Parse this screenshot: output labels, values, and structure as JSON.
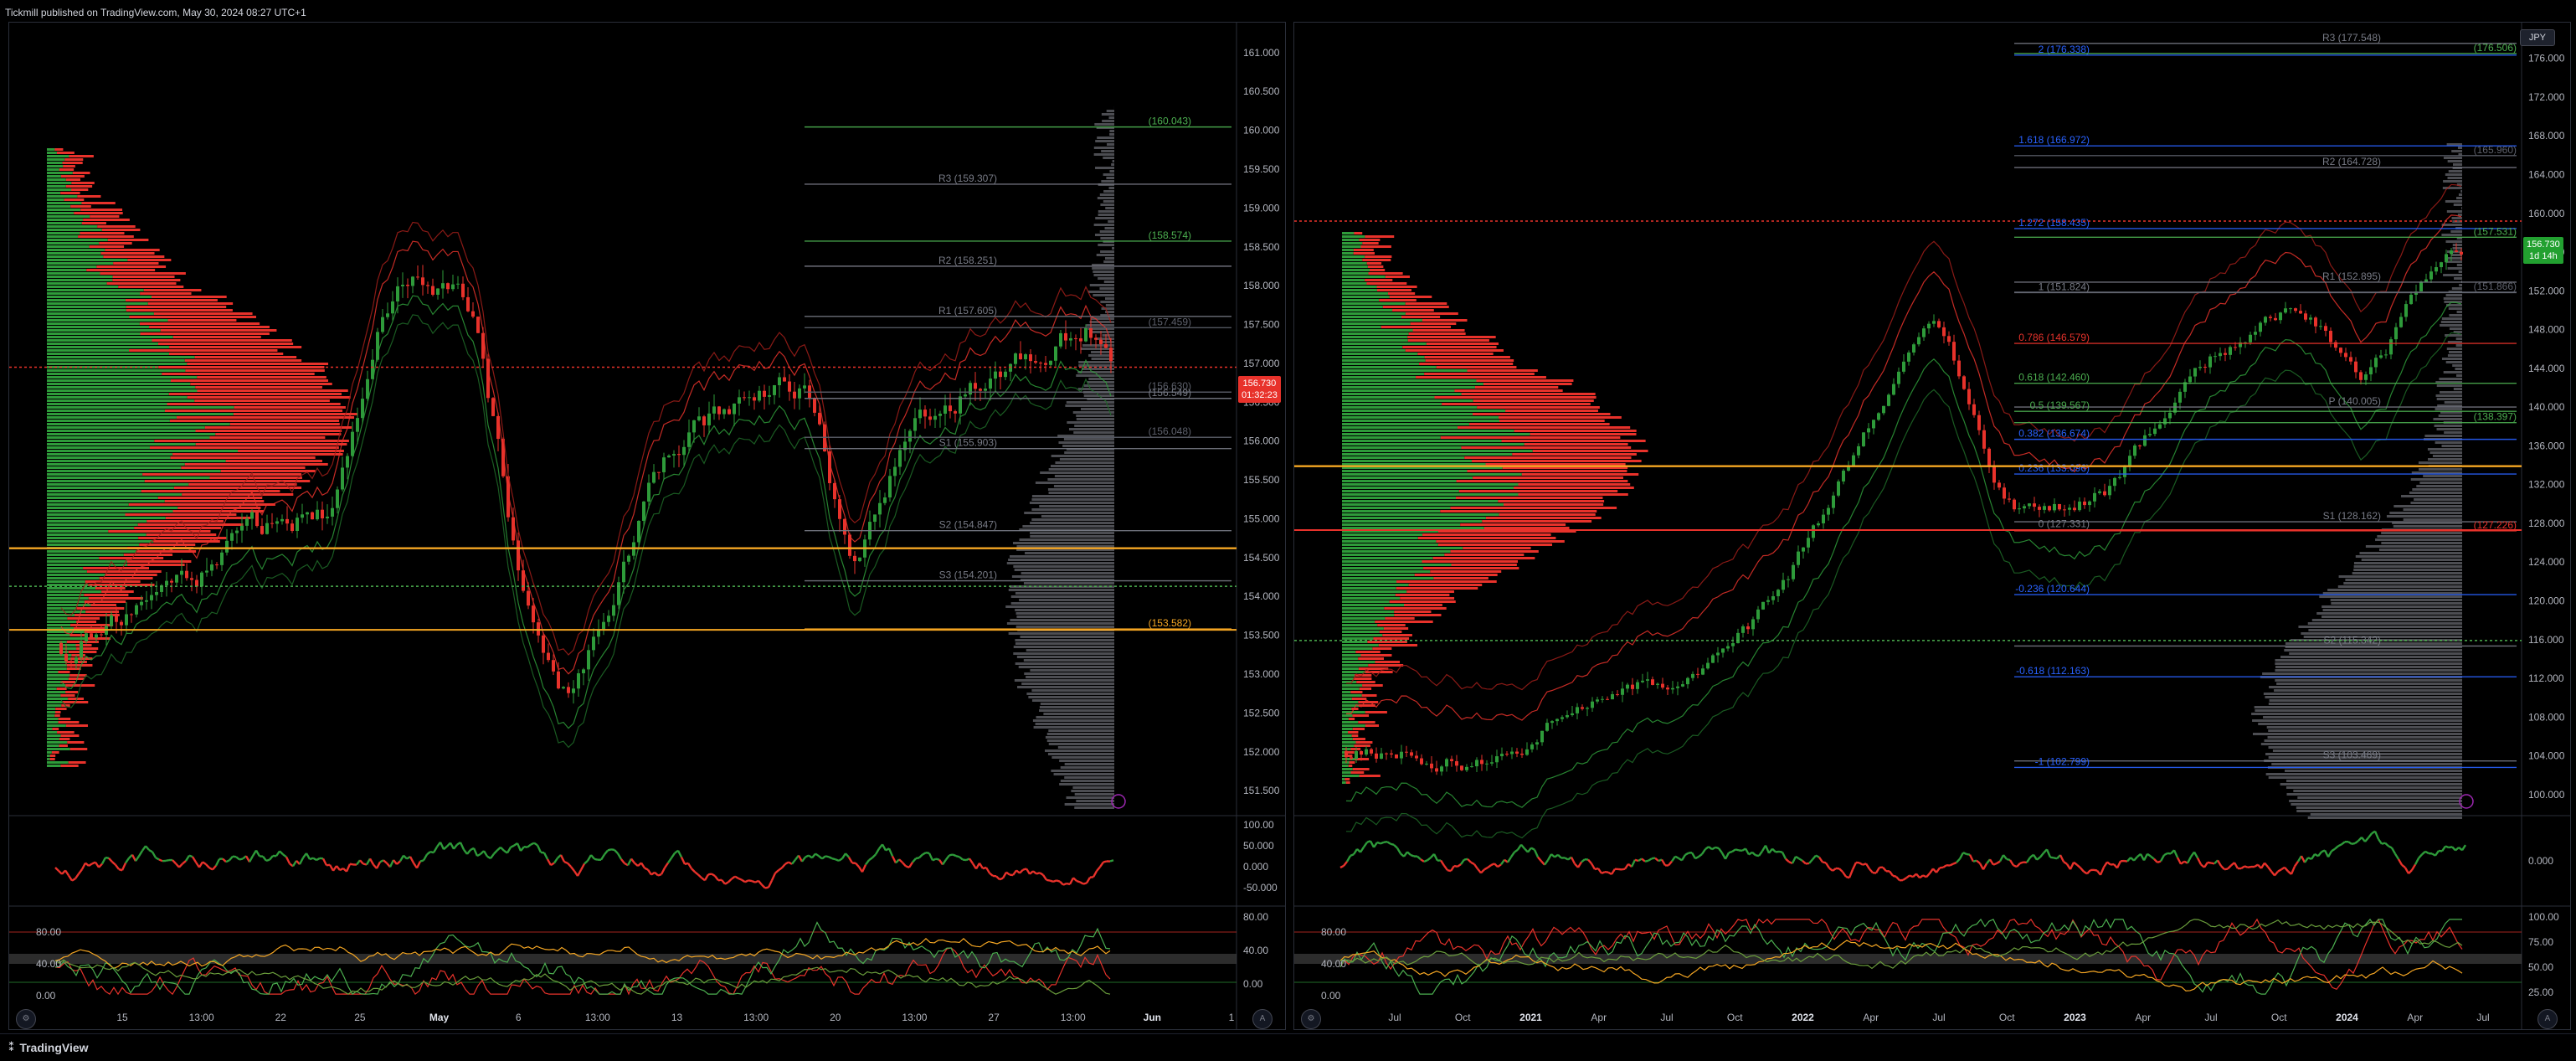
{
  "header": {
    "publish_line": "Tickmill published on TradingView.com, May 30, 2024 08:27 UTC+1"
  },
  "footer": {
    "brand": "TradingView"
  },
  "colors": {
    "bull": "#2e9b3a",
    "bear": "#e8322b",
    "axis_text": "#b2b5be",
    "grid": "#1a1a1a",
    "orange": "#f5a623",
    "blue": "#2962ff",
    "purple": "#9c27b0"
  },
  "left_chart": {
    "price_axis": [
      "161.000",
      "160.500",
      "160.000",
      "159.500",
      "159.000",
      "158.500",
      "158.000",
      "157.500",
      "157.000",
      "156.500",
      "156.000",
      "155.500",
      "155.000",
      "154.500",
      "154.000",
      "153.500",
      "153.000",
      "152.500",
      "152.000",
      "151.500"
    ],
    "price_range": [
      151.2,
      161.3
    ],
    "time_axis": [
      "15",
      "13:00",
      "22",
      "25",
      "May",
      "6",
      "13:00",
      "13",
      "13:00",
      "20",
      "13:00",
      "27",
      "13:00",
      "Jun",
      "1"
    ],
    "last_price": "156.730",
    "countdown": "01:32:23",
    "levels": [
      {
        "label": "(160.043)",
        "price": 160.043,
        "color": "#4caf50"
      },
      {
        "label": "R3 (159.307)",
        "price": 159.307,
        "color": "#787b86"
      },
      {
        "label": "(158.574)",
        "price": 158.574,
        "color": "#4caf50"
      },
      {
        "label": "R2 (158.251)",
        "price": 158.251,
        "color": "#787b86"
      },
      {
        "label": "R1 (157.605)",
        "price": 157.605,
        "color": "#787b86"
      },
      {
        "label": "(157.459)",
        "price": 157.459,
        "color": "#5d606b"
      },
      {
        "label": "(156.630)",
        "price": 156.63,
        "color": "#5d606b"
      },
      {
        "label": "(156.549)",
        "price": 156.549,
        "color": "#787b86"
      },
      {
        "label": "(156.048)",
        "price": 156.048,
        "color": "#5d606b"
      },
      {
        "label": "S1 (155.903)",
        "price": 155.903,
        "color": "#787b86"
      },
      {
        "label": "S2 (154.847)",
        "price": 154.847,
        "color": "#787b86"
      },
      {
        "label": "S3 (154.201)",
        "price": 154.201,
        "color": "#787b86"
      },
      {
        "label": "(153.582)",
        "price": 153.582,
        "color": "#f5a623"
      }
    ],
    "osc1_axis": [
      "100.00",
      "50.000",
      "0.000",
      "-50.000"
    ],
    "osc2_axis": [
      "80.00",
      "40.00",
      "0.00"
    ],
    "osc2_left_axis": [
      "80.00",
      "40.00",
      "0.00"
    ]
  },
  "right_chart": {
    "currency": "JPY",
    "price_axis": [
      "176.000",
      "172.000",
      "168.000",
      "164.000",
      "160.000",
      "156.000",
      "152.000",
      "148.000",
      "144.000",
      "140.000",
      "136.000",
      "132.000",
      "128.000",
      "124.000",
      "120.000",
      "116.000",
      "112.000",
      "108.000",
      "104.000",
      "100.000"
    ],
    "price_range": [
      98,
      179
    ],
    "time_axis": [
      "Jul",
      "Oct",
      "2021",
      "Apr",
      "Jul",
      "Oct",
      "2022",
      "Apr",
      "Jul",
      "Oct",
      "2023",
      "Apr",
      "Jul",
      "Oct",
      "2024",
      "Apr",
      "Jul"
    ],
    "last_price": "156.730",
    "countdown": "1d 14h",
    "levels": [
      {
        "label": "R3 (177.548)",
        "price": 177.548,
        "color": "#787b86"
      },
      {
        "label": "2 (176.338)",
        "price": 176.338,
        "color": "#2962ff"
      },
      {
        "label": "(176.506)",
        "price": 176.506,
        "color": "#4caf50"
      },
      {
        "label": "1.618 (166.972)",
        "price": 166.972,
        "color": "#2962ff"
      },
      {
        "label": "(165.960)",
        "price": 165.96,
        "color": "#5d606b"
      },
      {
        "label": "R2 (164.728)",
        "price": 164.728,
        "color": "#787b86"
      },
      {
        "label": "1.272 (158.435)",
        "price": 158.435,
        "color": "#2962ff"
      },
      {
        "label": "(157.531)",
        "price": 157.531,
        "color": "#4caf50"
      },
      {
        "label": "R1 (152.895)",
        "price": 152.895,
        "color": "#787b86"
      },
      {
        "label": "1 (151.824)",
        "price": 151.824,
        "color": "#787b86"
      },
      {
        "label": "(151.866)",
        "price": 151.866,
        "color": "#5d606b"
      },
      {
        "label": "0.786 (146.579)",
        "price": 146.579,
        "color": "#e8322b"
      },
      {
        "label": "0.618 (142.460)",
        "price": 142.46,
        "color": "#4caf50"
      },
      {
        "label": "P (140.005)",
        "price": 140.005,
        "color": "#787b86"
      },
      {
        "label": "(138.397)",
        "price": 138.397,
        "color": "#4caf50"
      },
      {
        "label": "0.5 (139.567)",
        "price": 139.567,
        "color": "#4caf50"
      },
      {
        "label": "0.382 (136.674)",
        "price": 136.674,
        "color": "#2962ff"
      },
      {
        "label": "0.236 (133.096)",
        "price": 133.096,
        "color": "#2962ff"
      },
      {
        "label": "S1 (128.162)",
        "price": 128.162,
        "color": "#787b86"
      },
      {
        "label": "(127.226)",
        "price": 127.226,
        "color": "#e8322b"
      },
      {
        "label": "0 (127.331)",
        "price": 127.331,
        "color": "#787b86"
      },
      {
        "label": "-0.236 (120.644)",
        "price": 120.644,
        "color": "#2962ff"
      },
      {
        "label": "S2 (115.342)",
        "price": 115.342,
        "color": "#787b86"
      },
      {
        "label": "-0.618 (112.163)",
        "price": 112.163,
        "color": "#2962ff"
      },
      {
        "label": "S3 (103.469)",
        "price": 103.469,
        "color": "#787b86"
      },
      {
        "label": "-1 (102.799)",
        "price": 102.799,
        "color": "#2962ff"
      }
    ],
    "osc1_axis": [
      "0.000"
    ],
    "osc2_axis": [
      "100.00",
      "75.00",
      "50.00",
      "25.00"
    ],
    "osc2_left_axis": [
      "80.00",
      "40.00",
      "0.00"
    ]
  }
}
